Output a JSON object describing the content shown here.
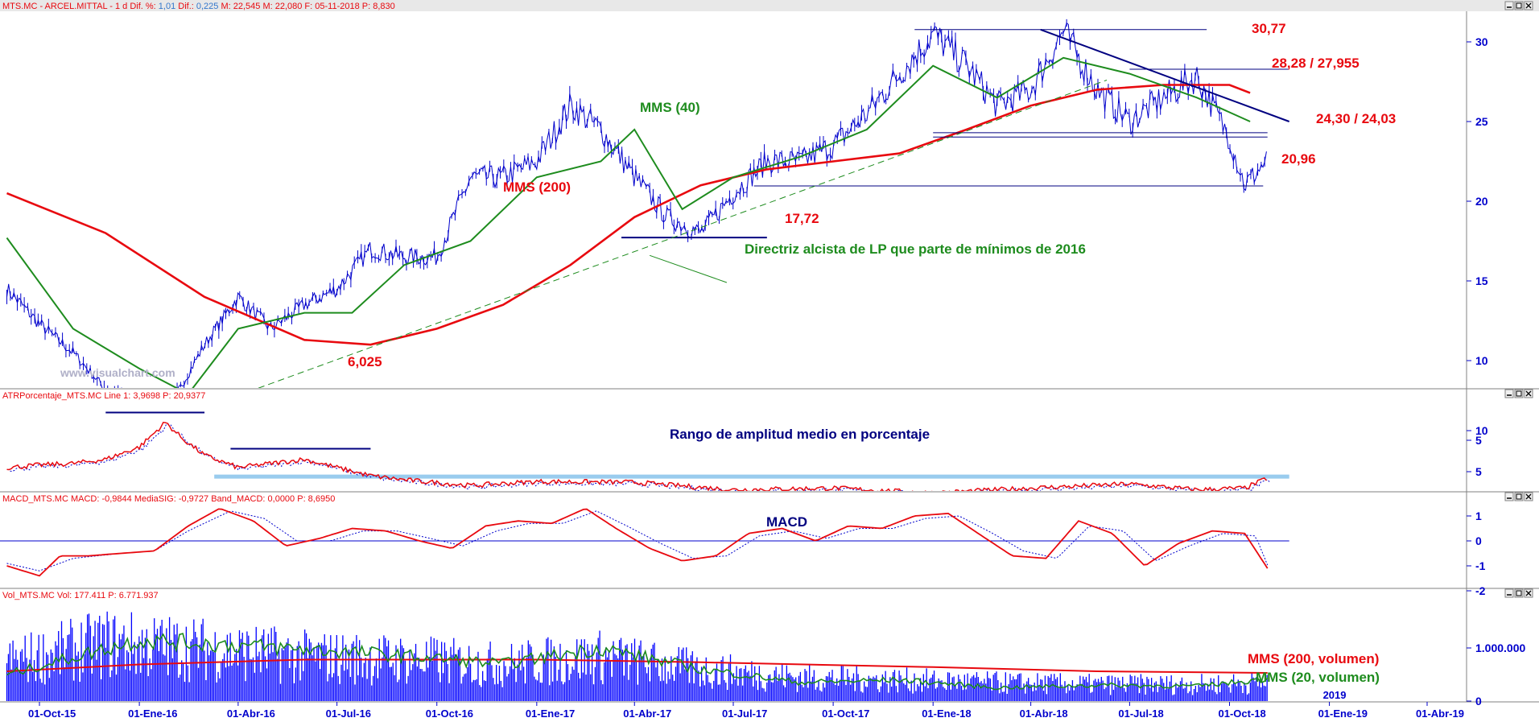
{
  "window": {
    "price_header": {
      "symbol": "MTS.MC - ARCEL.MITTAL - ",
      "period": " 1 d ",
      "dif_pct_label": "Dif. %:",
      "dif_pct_value": " 1,01 ",
      "dif_label": "Dif.:",
      "dif_value": " 0,225 ",
      "m1": " M: 22,545 ",
      "m2": " M: 22,080 ",
      "date": " F: 05-11-2018 ",
      "p": " P: 8,830"
    },
    "atr_header": {
      "name": "ATRPorcentaje_MTS.MC ",
      "line": " Line 1: 3,9698 ",
      "p": " P: 20,9377"
    },
    "macd_header": {
      "name": "MACD_MTS.MC ",
      "macd": " MACD: -0,9844 ",
      "sig": " MediaSIG: -0,9727 ",
      "band": " Band_MACD: 0,0000 ",
      "p": " P: 8,6950"
    },
    "vol_header": {
      "name": "Vol_MTS.MC ",
      "vol": " Vol: 177.411 ",
      "p": " P: 6.771.937"
    },
    "watermark": "www.visualchart.com"
  },
  "annotations": {
    "price_30_77": "30,77",
    "price_28": "28,28 / 27,955",
    "price_24": "24,30 / 24,03",
    "price_20_96": "20,96",
    "price_17_72": "17,72",
    "price_6_025": "6,025",
    "mms40": "MMS (40)",
    "mms200": "MMS (200)",
    "trendline": "Directriz alcista de LP que parte de mínimos de 2016",
    "atr_title": "Rango de amplitud medio en porcentaje",
    "macd_title": "MACD",
    "vol_mms200": "MMS (200, volumen)",
    "vol_mms20": "MMS (20, volumen)"
  },
  "chart_data": [
    {
      "type": "line",
      "panel": "price",
      "y_ticks": [
        "30",
        "25",
        "20",
        "15",
        "10",
        "5"
      ],
      "ylim": [
        5,
        31.8
      ],
      "series": [
        {
          "name": "",
          "color": "#0000cc",
          "x": [
            "2015-09-01",
            "2015-10-01",
            "2015-11-01",
            "2015-12-01",
            "2016-01-01",
            "2016-01-20",
            "2016-02-01",
            "2016-03-01",
            "2016-04-01",
            "2016-05-01",
            "2016-06-01",
            "2016-07-01",
            "2016-08-01",
            "2016-09-01",
            "2016-10-01",
            "2016-11-01",
            "2016-12-01",
            "2017-01-01",
            "2017-02-01",
            "2017-03-01",
            "2017-04-01",
            "2017-05-01",
            "2017-06-01",
            "2017-07-01",
            "2017-08-01",
            "2017-09-01",
            "2017-10-01",
            "2017-11-01",
            "2017-12-01",
            "2018-01-01",
            "2018-02-01",
            "2018-03-01",
            "2018-04-01",
            "2018-05-01",
            "2018-06-01",
            "2018-07-01",
            "2018-08-01",
            "2018-09-01",
            "2018-10-01",
            "2018-10-15",
            "2018-11-05"
          ],
          "values": [
            14.5,
            12.3,
            10.5,
            8.2,
            7.0,
            6.03,
            7.5,
            11.0,
            14.0,
            12.0,
            13.5,
            14.5,
            17.0,
            16.5,
            16.5,
            21.5,
            21.5,
            22.5,
            26.0,
            24.5,
            21.5,
            19.0,
            18.0,
            20.5,
            22.5,
            22.5,
            23.5,
            25.5,
            28.0,
            30.5,
            28.5,
            26.0,
            27.0,
            30.7,
            27.0,
            25.0,
            26.5,
            27.8,
            24.0,
            21.0,
            22.6
          ]
        },
        {
          "name": "MMS (40)",
          "color": "#1e8c1e",
          "x": [
            "2015-09-01",
            "2015-11-01",
            "2016-01-01",
            "2016-02-15",
            "2016-04-01",
            "2016-06-01",
            "2016-07-15",
            "2016-09-01",
            "2016-11-01",
            "2017-01-01",
            "2017-03-01",
            "2017-04-01",
            "2017-05-15",
            "2017-07-01",
            "2017-09-01",
            "2017-11-01",
            "2018-01-01",
            "2018-03-01",
            "2018-05-01",
            "2018-07-01",
            "2018-09-01",
            "2018-10-20"
          ],
          "values": [
            17.7,
            12.0,
            9.5,
            7.9,
            12.0,
            13.0,
            13.0,
            16.0,
            17.5,
            21.5,
            22.5,
            24.5,
            19.5,
            21.5,
            22.8,
            24.5,
            28.5,
            26.5,
            29.0,
            28.0,
            26.5,
            25.0
          ]
        },
        {
          "name": "MMS (200)",
          "color": "#e8090f",
          "x": [
            "2015-09-01",
            "2015-12-01",
            "2016-03-01",
            "2016-06-01",
            "2016-08-01",
            "2016-10-01",
            "2016-12-01",
            "2017-02-01",
            "2017-04-01",
            "2017-06-01",
            "2017-08-01",
            "2017-10-01",
            "2017-12-01",
            "2018-02-01",
            "2018-04-01",
            "2018-06-01",
            "2018-08-01",
            "2018-10-01",
            "2018-10-20"
          ],
          "values": [
            20.5,
            18.0,
            14.0,
            11.3,
            11.0,
            12.0,
            13.5,
            16.0,
            19.0,
            21.0,
            22.0,
            22.5,
            23.0,
            24.5,
            26.0,
            27.0,
            27.3,
            27.3,
            26.8
          ]
        }
      ],
      "horizontal_levels": [
        {
          "label": "30,77",
          "value": 30.77,
          "from": "2017-12-15",
          "to": "2018-09-10"
        },
        {
          "label": "28,28 / 27,955",
          "value": 28.28,
          "from": "2018-07-01",
          "to": "2018-11-25"
        },
        {
          "label": "24,30 / 24,03",
          "value": 24.3,
          "from": "2018-01-01",
          "to": "2018-11-05"
        },
        {
          "label": "20,96",
          "value": 20.96,
          "from": "2017-07-20",
          "to": "2018-11-01"
        },
        {
          "label": "17,72",
          "value": 17.72,
          "from": "2017-03-20",
          "to": "2017-08-01"
        },
        {
          "label": "6,025",
          "value": 6.025,
          "from": "2016-01-01",
          "to": "2016-07-20"
        }
      ],
      "trendlines": [
        {
          "name": "Directriz alcista de LP que parte de mínimos de 2016",
          "from": [
            "2016-01-20",
            6.03
          ],
          "to": [
            "2018-06-10",
            27.6
          ],
          "style": "dashed",
          "color": "#1e8c1e"
        },
        {
          "name": "",
          "from": [
            "2018-04-10",
            30.77
          ],
          "to": [
            "2018-11-25",
            25.0
          ],
          "style": "solid",
          "color": "#000080"
        }
      ]
    },
    {
      "type": "line",
      "panel": "atr",
      "y_ticks": [
        "10",
        "5"
      ],
      "ylim": [
        1.5,
        12.5
      ],
      "series": [
        {
          "name": "Line 1",
          "color": "#e8090f",
          "x": [
            "2015-09-01",
            "2015-10-01",
            "2015-11-01",
            "2015-12-01",
            "2016-01-01",
            "2016-01-25",
            "2016-02-10",
            "2016-03-01",
            "2016-04-01",
            "2016-05-01",
            "2016-06-01",
            "2016-07-01",
            "2016-08-01",
            "2016-09-01",
            "2016-11-01",
            "2017-01-01",
            "2017-04-01",
            "2017-07-01",
            "2017-10-01",
            "2018-01-01",
            "2018-04-01",
            "2018-07-01",
            "2018-09-01",
            "2018-10-15",
            "2018-11-05"
          ],
          "values": [
            5.5,
            5.8,
            6.0,
            6.5,
            8.0,
            11.0,
            9.0,
            7.0,
            5.5,
            6.0,
            6.5,
            5.5,
            4.5,
            4.0,
            3.3,
            3.8,
            3.7,
            2.8,
            3.0,
            2.4,
            3.0,
            3.5,
            2.8,
            3.0,
            4.2
          ]
        }
      ],
      "bands": [
        {
          "value": 4.4,
          "from": "2016-03-10",
          "to": "2018-11-25",
          "color": "#99ccee"
        },
        {
          "value": 2.3,
          "from": "2016-12-10",
          "to": "2018-11-25",
          "color": "#99ccee"
        }
      ],
      "levels": [
        {
          "value": 12.2,
          "from": "2015-12-01",
          "to": "2016-03-01",
          "color": "#000080"
        },
        {
          "value": 7.8,
          "from": "2016-03-25",
          "to": "2016-08-01",
          "color": "#000080"
        }
      ]
    },
    {
      "type": "line",
      "panel": "macd",
      "y_ticks": [
        "1",
        "0",
        "-1",
        "-2"
      ],
      "ylim": [
        -2,
        1.5
      ],
      "series": [
        {
          "name": "MACD",
          "color": "#e8090f",
          "x": [
            "2015-09-01",
            "2015-10-01",
            "2015-10-20",
            "2015-11-15",
            "2015-12-15",
            "2016-01-15",
            "2016-02-15",
            "2016-03-15",
            "2016-04-15",
            "2016-05-15",
            "2016-06-15",
            "2016-07-15",
            "2016-08-15",
            "2016-09-15",
            "2016-10-15",
            "2016-11-15",
            "2016-12-15",
            "2017-01-15",
            "2017-02-15",
            "2017-03-15",
            "2017-04-15",
            "2017-05-15",
            "2017-06-15",
            "2017-07-15",
            "2017-08-15",
            "2017-09-15",
            "2017-10-15",
            "2017-11-15",
            "2017-12-15",
            "2018-01-15",
            "2018-02-15",
            "2018-03-15",
            "2018-04-15",
            "2018-05-15",
            "2018-06-15",
            "2018-07-15",
            "2018-08-15",
            "2018-09-15",
            "2018-10-15",
            "2018-11-05"
          ],
          "values": [
            -1.0,
            -1.4,
            -0.6,
            -0.6,
            -0.5,
            -0.4,
            0.6,
            1.3,
            0.8,
            -0.2,
            0.1,
            0.5,
            0.4,
            0.0,
            -0.3,
            0.6,
            0.8,
            0.7,
            1.3,
            0.5,
            -0.3,
            -0.8,
            -0.6,
            0.3,
            0.5,
            0.0,
            0.6,
            0.5,
            1.0,
            1.1,
            0.2,
            -0.6,
            -0.7,
            0.8,
            0.3,
            -1.0,
            -0.1,
            0.4,
            0.3,
            -1.1
          ]
        },
        {
          "name": "MediaSIG",
          "color": "#0000cc",
          "x": [
            "2015-09-01",
            "2015-10-01",
            "2015-11-01",
            "2015-12-15",
            "2016-01-15",
            "2016-02-15",
            "2016-03-25",
            "2016-04-25",
            "2016-05-25",
            "2016-06-25",
            "2016-07-25",
            "2016-08-25",
            "2016-09-25",
            "2016-10-25",
            "2016-11-25",
            "2016-12-25",
            "2017-01-25",
            "2017-02-25",
            "2017-03-25",
            "2017-04-25",
            "2017-05-25",
            "2017-06-25",
            "2017-07-25",
            "2017-08-25",
            "2017-09-25",
            "2017-10-25",
            "2017-11-25",
            "2017-12-25",
            "2018-01-25",
            "2018-02-25",
            "2018-03-25",
            "2018-04-25",
            "2018-05-25",
            "2018-06-25",
            "2018-07-25",
            "2018-08-25",
            "2018-09-25",
            "2018-10-25",
            "2018-11-05"
          ],
          "values": [
            -0.9,
            -1.2,
            -0.7,
            -0.5,
            -0.4,
            0.4,
            1.2,
            0.9,
            0.0,
            0.0,
            0.4,
            0.4,
            0.1,
            -0.2,
            0.4,
            0.7,
            0.7,
            1.2,
            0.6,
            -0.1,
            -0.7,
            -0.6,
            0.2,
            0.4,
            0.1,
            0.5,
            0.5,
            0.9,
            1.0,
            0.3,
            -0.4,
            -0.7,
            0.6,
            0.4,
            -0.8,
            -0.2,
            0.3,
            0.2,
            -0.97
          ]
        }
      ],
      "zero_line": 0
    },
    {
      "type": "bar",
      "panel": "volume",
      "y_ticks": [
        "1.000.000",
        "0"
      ],
      "ylim": [
        0,
        1800000
      ],
      "series": [
        {
          "name": "Vol",
          "color": "#0000ff",
          "x": [
            "2015-09-01",
            "2015-12-01",
            "2016-03-01",
            "2016-06-01",
            "2016-09-01",
            "2016-12-01",
            "2017-03-01",
            "2017-06-01",
            "2017-09-01",
            "2017-12-01",
            "2018-03-01",
            "2018-06-01",
            "2018-09-01",
            "2018-11-05"
          ],
          "values": [
            750000,
            1100000,
            1000000,
            850000,
            800000,
            700000,
            850000,
            600000,
            450000,
            400000,
            350000,
            320000,
            320000,
            350000
          ]
        },
        {
          "name": "MMS (200, volumen)",
          "color": "#e8090f",
          "x": [
            "2015-09-01",
            "2016-01-01",
            "2016-06-01",
            "2017-01-01",
            "2017-06-01",
            "2018-01-01",
            "2018-06-01",
            "2018-11-05"
          ],
          "values": [
            560000,
            690000,
            780000,
            780000,
            730000,
            640000,
            560000,
            530000
          ]
        },
        {
          "name": "MMS (20, volumen)",
          "color": "#1e8c1e",
          "x": [
            "2015-09-01",
            "2016-01-01",
            "2016-04-01",
            "2016-08-01",
            "2016-12-01",
            "2017-03-01",
            "2017-06-01",
            "2017-09-01",
            "2017-12-01",
            "2018-03-01",
            "2018-06-01",
            "2018-09-01",
            "2018-11-05"
          ],
          "values": [
            500000,
            1150000,
            1050000,
            900000,
            700000,
            1000000,
            600000,
            350000,
            400000,
            250000,
            300000,
            280000,
            420000
          ]
        }
      ]
    },
    {
      "type": "line",
      "panel": "date-axis",
      "x_tick_labels": [
        "01-Oct-15",
        "01-Ene-16",
        "01-Abr-16",
        "01-Jul-16",
        "01-Oct-16",
        "01-Ene-17",
        "01-Abr-17",
        "01-Jul-17",
        "01-Oct-17",
        "01-Ene-18",
        "01-Abr-18",
        "01-Jul-18",
        "01-Oct-18",
        "01-Ene-19",
        "01-Abr-19"
      ],
      "x_tick_dates": [
        "2015-10-01",
        "2016-01-01",
        "2016-04-01",
        "2016-07-01",
        "2016-10-01",
        "2017-01-01",
        "2017-04-01",
        "2017-07-01",
        "2017-10-01",
        "2018-01-01",
        "2018-04-01",
        "2018-07-01",
        "2018-10-01",
        "2019-01-01",
        "2019-04-01"
      ],
      "year_marker": "2019",
      "year_marker_date": "2019-01-01"
    }
  ]
}
